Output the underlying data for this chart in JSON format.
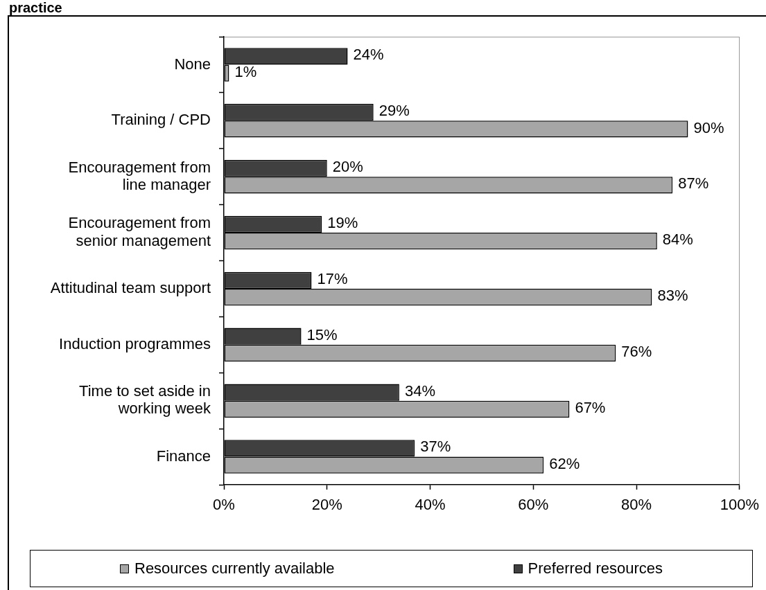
{
  "chart_data": {
    "type": "bar",
    "title": "practice",
    "orientation": "horizontal",
    "categories": [
      "None",
      "Training / CPD",
      "Encouragement from line manager",
      "Encouragement from senior management",
      "Attitudinal team support",
      "Induction programmes",
      "Time to set aside in working week",
      "Finance"
    ],
    "series": [
      {
        "name": "Resources currently available",
        "color": "#a6a6a6",
        "values": [
          1,
          90,
          87,
          84,
          83,
          76,
          67,
          62
        ],
        "value_labels": [
          "1%",
          "90%",
          "87%",
          "84%",
          "83%",
          "76%",
          "67%",
          "62%"
        ]
      },
      {
        "name": "Preferred resources",
        "color": "#404040",
        "values": [
          24,
          29,
          20,
          19,
          17,
          15,
          34,
          37
        ],
        "value_labels": [
          "24%",
          "29%",
          "20%",
          "19%",
          "17%",
          "15%",
          "34%",
          "37%"
        ]
      }
    ],
    "xlim": [
      0,
      100
    ],
    "xticks": [
      {
        "value": 0,
        "label": "0%"
      },
      {
        "value": 20,
        "label": "20%"
      },
      {
        "value": 40,
        "label": "40%"
      },
      {
        "value": 60,
        "label": "60%"
      },
      {
        "value": 80,
        "label": "80%"
      },
      {
        "value": 100,
        "label": "100%"
      }
    ],
    "legend": "bottom"
  }
}
